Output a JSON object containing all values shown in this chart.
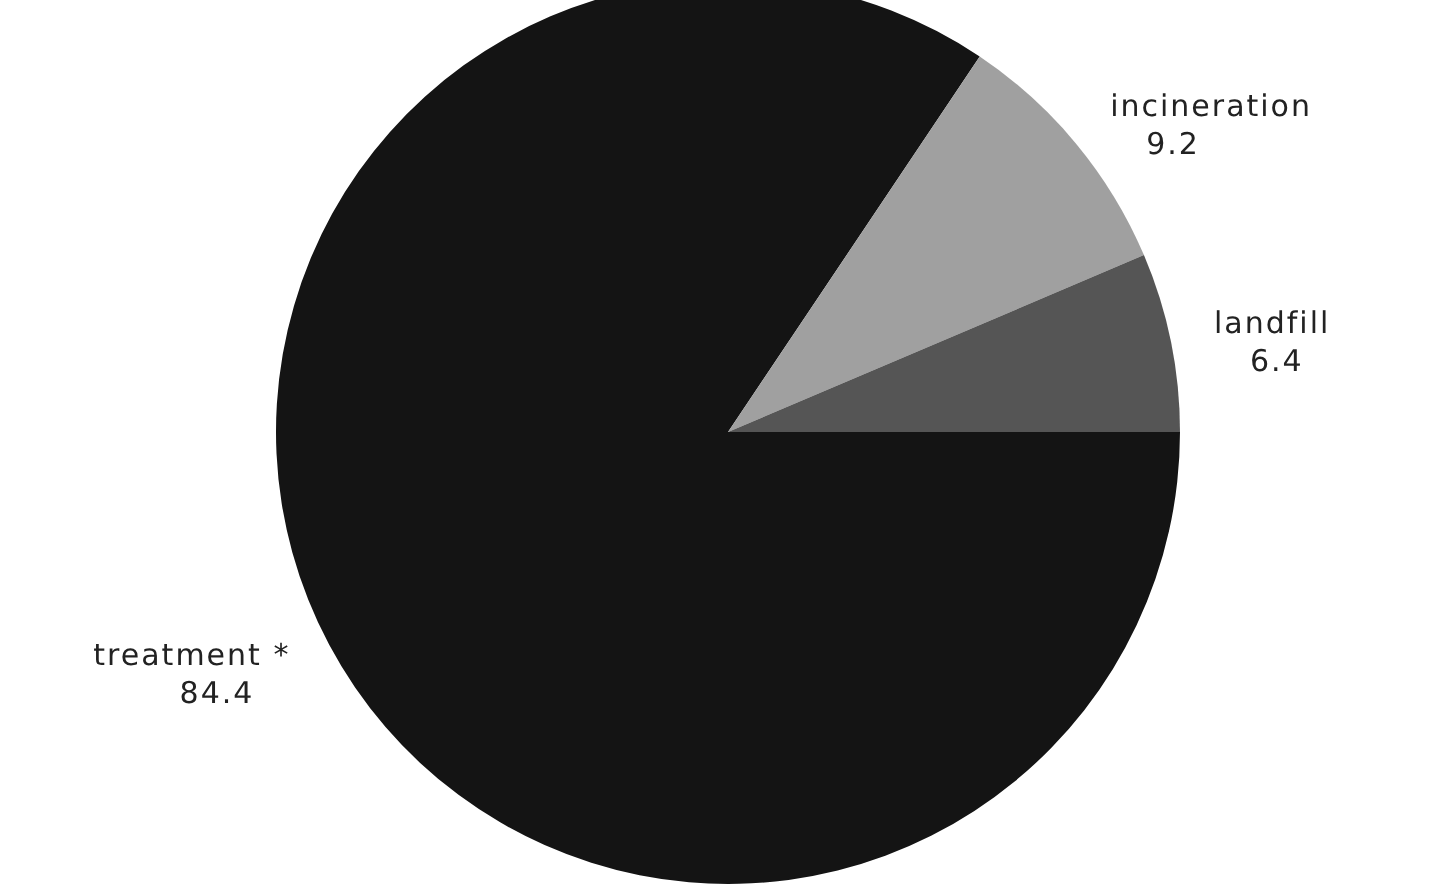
{
  "chart_data": {
    "type": "pie",
    "categories": [
      "treatment *",
      "incineration",
      "landfill"
    ],
    "values": [
      84.4,
      9.2,
      6.4
    ],
    "colors": [
      "#141414",
      "#a0a0a0",
      "#555555"
    ],
    "data_labels": true
  }
}
